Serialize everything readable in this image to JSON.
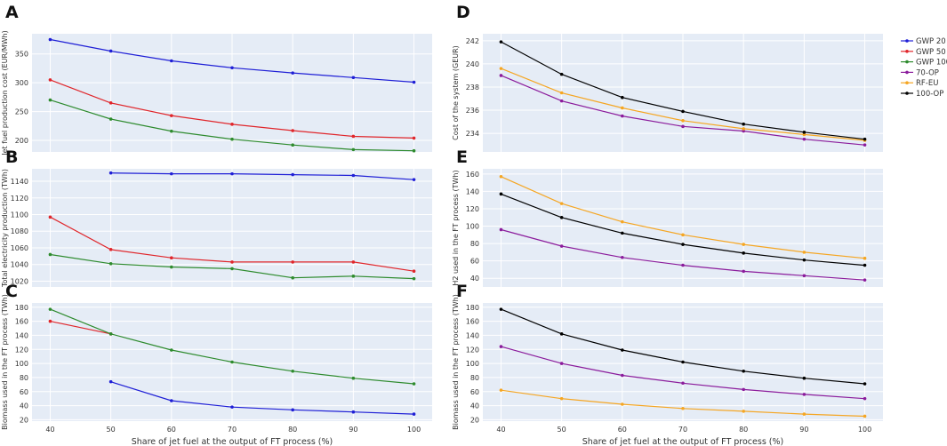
{
  "colors": {
    "plot_bg": "#e5ecf6",
    "grid": "#ffffff",
    "GWP 20": "#1f1fd6",
    "GWP 50": "#e0262b",
    "GWP 100": "#2e8b2e",
    "70-OP": "#8b1c9c",
    "RF-EU": "#f5a623",
    "100-OP": "#000000"
  },
  "legend": [
    "GWP 20",
    "GWP 50",
    "GWP 100",
    "70-OP",
    "RF-EU",
    "100-OP"
  ],
  "chart_data": [
    {
      "id": "A",
      "panel_label": "A",
      "type": "line",
      "title": "",
      "xlabel": "",
      "ylabel": "Jet fuel production cost (EUR/MWh)",
      "x": [
        40,
        50,
        60,
        70,
        80,
        90,
        100
      ],
      "xlim": [
        37,
        103
      ],
      "ylim": [
        180,
        385
      ],
      "yticks": [
        200,
        250,
        300,
        350
      ],
      "xticks": [],
      "series": [
        {
          "name": "GWP 20",
          "values": [
            375,
            355,
            338,
            326,
            317,
            309,
            301
          ]
        },
        {
          "name": "GWP 50",
          "values": [
            305,
            265,
            243,
            228,
            217,
            207,
            204
          ]
        },
        {
          "name": "GWP 100",
          "values": [
            270,
            237,
            216,
            202,
            192,
            184,
            182
          ]
        }
      ]
    },
    {
      "id": "B",
      "panel_label": "B",
      "type": "line",
      "title": "",
      "xlabel": "",
      "ylabel": "Total electricity production (TWh)",
      "x": [
        40,
        50,
        60,
        70,
        80,
        90,
        100
      ],
      "xlim": [
        37,
        103
      ],
      "ylim": [
        1013,
        1155
      ],
      "yticks": [
        1020,
        1040,
        1060,
        1080,
        1100,
        1120,
        1140
      ],
      "xticks": [],
      "series": [
        {
          "name": "GWP 20",
          "values": [
            null,
            1150,
            1149,
            1149,
            1148,
            1147,
            1142
          ]
        },
        {
          "name": "GWP 50",
          "values": [
            1097,
            1058,
            1048,
            1043,
            1043,
            1043,
            1032
          ]
        },
        {
          "name": "GWP 100",
          "values": [
            1052,
            1041,
            1037,
            1035,
            1024,
            1026,
            1023
          ]
        }
      ]
    },
    {
      "id": "C",
      "panel_label": "C",
      "type": "line",
      "title": "",
      "xlabel": "Share of jet fuel at the output of FT process (%)",
      "ylabel": "Biomass used in the FT process (TWh)",
      "x": [
        40,
        50,
        60,
        70,
        80,
        90,
        100
      ],
      "xlim": [
        37,
        103
      ],
      "ylim": [
        18,
        186
      ],
      "yticks": [
        20,
        40,
        60,
        80,
        100,
        120,
        140,
        160,
        180
      ],
      "xticks": [
        40,
        50,
        60,
        70,
        80,
        90,
        100
      ],
      "series": [
        {
          "name": "GWP 20",
          "values": [
            null,
            74,
            47,
            38,
            34,
            31,
            28
          ]
        },
        {
          "name": "GWP 50",
          "values": [
            160,
            142,
            null,
            null,
            null,
            null,
            null
          ]
        },
        {
          "name": "GWP 100",
          "values": [
            177,
            142,
            119,
            102,
            89,
            79,
            71
          ]
        }
      ]
    },
    {
      "id": "D",
      "panel_label": "D",
      "type": "line",
      "title": "",
      "xlabel": "",
      "ylabel": "Cost of the system (GEUR)",
      "x": [
        40,
        50,
        60,
        70,
        80,
        90,
        100
      ],
      "xlim": [
        37,
        103
      ],
      "ylim": [
        232.4,
        242.6
      ],
      "yticks": [
        234,
        236,
        238,
        240,
        242
      ],
      "xticks": [],
      "series": [
        {
          "name": "70-OP",
          "values": [
            239.0,
            236.8,
            235.5,
            234.6,
            234.2,
            233.5,
            233.0
          ]
        },
        {
          "name": "RF-EU",
          "values": [
            239.6,
            237.5,
            236.2,
            235.1,
            234.4,
            233.9,
            233.4
          ]
        },
        {
          "name": "100-OP",
          "values": [
            241.9,
            239.1,
            237.1,
            235.9,
            234.8,
            234.1,
            233.5
          ]
        }
      ]
    },
    {
      "id": "E",
      "panel_label": "E",
      "type": "line",
      "title": "",
      "xlabel": "",
      "ylabel": "H2 used in the FT process (TWh)",
      "x": [
        40,
        50,
        60,
        70,
        80,
        90,
        100
      ],
      "xlim": [
        37,
        103
      ],
      "ylim": [
        30,
        166
      ],
      "yticks": [
        40,
        60,
        80,
        100,
        120,
        140,
        160
      ],
      "xticks": [],
      "series": [
        {
          "name": "70-OP",
          "values": [
            96,
            77,
            64,
            55,
            48,
            43,
            38
          ]
        },
        {
          "name": "RF-EU",
          "values": [
            157,
            126,
            105,
            90,
            79,
            70,
            63
          ]
        },
        {
          "name": "100-OP",
          "values": [
            137,
            110,
            92,
            79,
            69,
            61,
            55
          ]
        }
      ]
    },
    {
      "id": "F",
      "panel_label": "F",
      "type": "line",
      "title": "",
      "xlabel": "Share of jet fuel at the output of FT process (%)",
      "ylabel": "Biomass used in the FT process (TWh)",
      "x": [
        40,
        50,
        60,
        70,
        80,
        90,
        100
      ],
      "xlim": [
        37,
        103
      ],
      "ylim": [
        18,
        186
      ],
      "yticks": [
        20,
        40,
        60,
        80,
        100,
        120,
        140,
        160,
        180
      ],
      "xticks": [
        40,
        50,
        60,
        70,
        80,
        90,
        100
      ],
      "series": [
        {
          "name": "70-OP",
          "values": [
            124,
            100,
            83,
            72,
            63,
            56,
            50
          ]
        },
        {
          "name": "RF-EU",
          "values": [
            62,
            50,
            42,
            36,
            32,
            28,
            25
          ]
        },
        {
          "name": "100-OP",
          "values": [
            177,
            142,
            119,
            102,
            89,
            79,
            71
          ]
        }
      ]
    }
  ]
}
